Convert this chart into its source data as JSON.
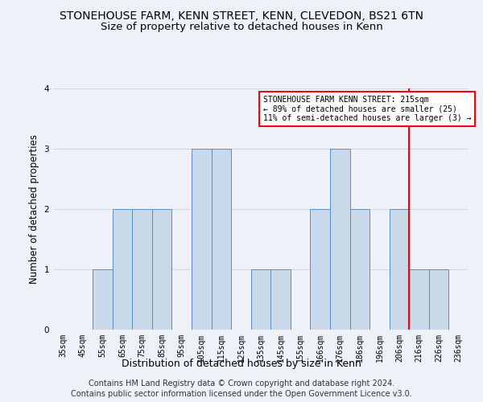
{
  "title": "STONEHOUSE FARM, KENN STREET, KENN, CLEVEDON, BS21 6TN",
  "subtitle": "Size of property relative to detached houses in Kenn",
  "xlabel": "Distribution of detached houses by size in Kenn",
  "ylabel": "Number of detached properties",
  "footer_line1": "Contains HM Land Registry data © Crown copyright and database right 2024.",
  "footer_line2": "Contains public sector information licensed under the Open Government Licence v3.0.",
  "bins": [
    "35sqm",
    "45sqm",
    "55sqm",
    "65sqm",
    "75sqm",
    "85sqm",
    "95sqm",
    "105sqm",
    "115sqm",
    "125sqm",
    "135sqm",
    "145sqm",
    "155sqm",
    "166sqm",
    "176sqm",
    "186sqm",
    "196sqm",
    "206sqm",
    "216sqm",
    "226sqm",
    "236sqm"
  ],
  "values": [
    0,
    0,
    1,
    2,
    2,
    2,
    0,
    3,
    3,
    0,
    1,
    1,
    0,
    2,
    3,
    2,
    0,
    2,
    1,
    1,
    0
  ],
  "bar_color": "#c9d9ea",
  "bar_edge_color": "#5a8fc0",
  "grid_color": "#d0d8e8",
  "bg_color": "#eef2f8",
  "vline_color": "red",
  "annotation_text": "STONEHOUSE FARM KENN STREET: 215sqm\n← 89% of detached houses are smaller (25)\n11% of semi-detached houses are larger (3) →",
  "annotation_box_color": "white",
  "annotation_box_edge": "red",
  "ylim": [
    0,
    4
  ],
  "yticks": [
    0,
    1,
    2,
    3,
    4
  ],
  "title_fontsize": 10,
  "subtitle_fontsize": 9.5,
  "axis_label_fontsize": 8.5,
  "tick_fontsize": 7,
  "footer_fontsize": 7
}
